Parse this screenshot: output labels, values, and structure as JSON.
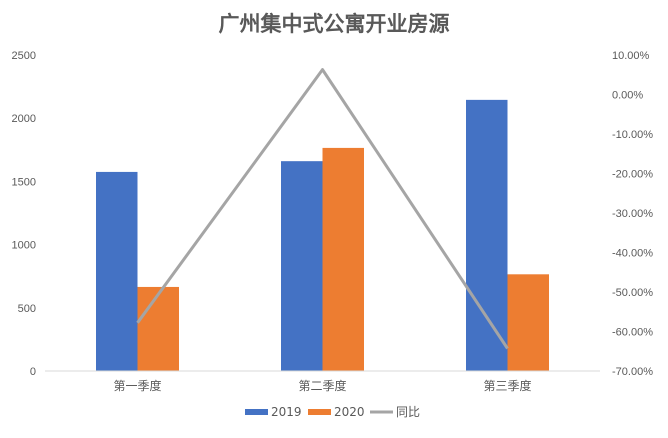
{
  "chart_data": {
    "type": "bar",
    "title": "广州集中式公寓开业房源",
    "categories": [
      "第一季度",
      "第二季度",
      "第三季度"
    ],
    "series": [
      {
        "name": "2019",
        "type": "bar",
        "axis": "left",
        "color": "#4472C4",
        "values": [
          1575,
          1660,
          2145
        ]
      },
      {
        "name": "2020",
        "type": "bar",
        "axis": "left",
        "color": "#ED7D31",
        "values": [
          665,
          1765,
          765
        ]
      },
      {
        "name": "同比",
        "type": "line",
        "axis": "right",
        "color": "#A5A5A5",
        "values": [
          -57.8,
          6.3,
          -64.3
        ]
      }
    ],
    "left_axis": {
      "min": 0,
      "max": 2500,
      "step": 500,
      "ticks": [
        "0",
        "500",
        "1000",
        "1500",
        "2000",
        "2500"
      ]
    },
    "right_axis": {
      "min": -70,
      "max": 10,
      "step": 10,
      "ticks": [
        "10.00%",
        "0.00%",
        "-10.00%",
        "-20.00%",
        "-30.00%",
        "-40.00%",
        "-50.00%",
        "-60.00%",
        "-70.00%"
      ]
    },
    "xlabel": "",
    "ylabel": "",
    "grid": false,
    "legend_position": "bottom",
    "legend": [
      "2019",
      "2020",
      "同比"
    ]
  }
}
